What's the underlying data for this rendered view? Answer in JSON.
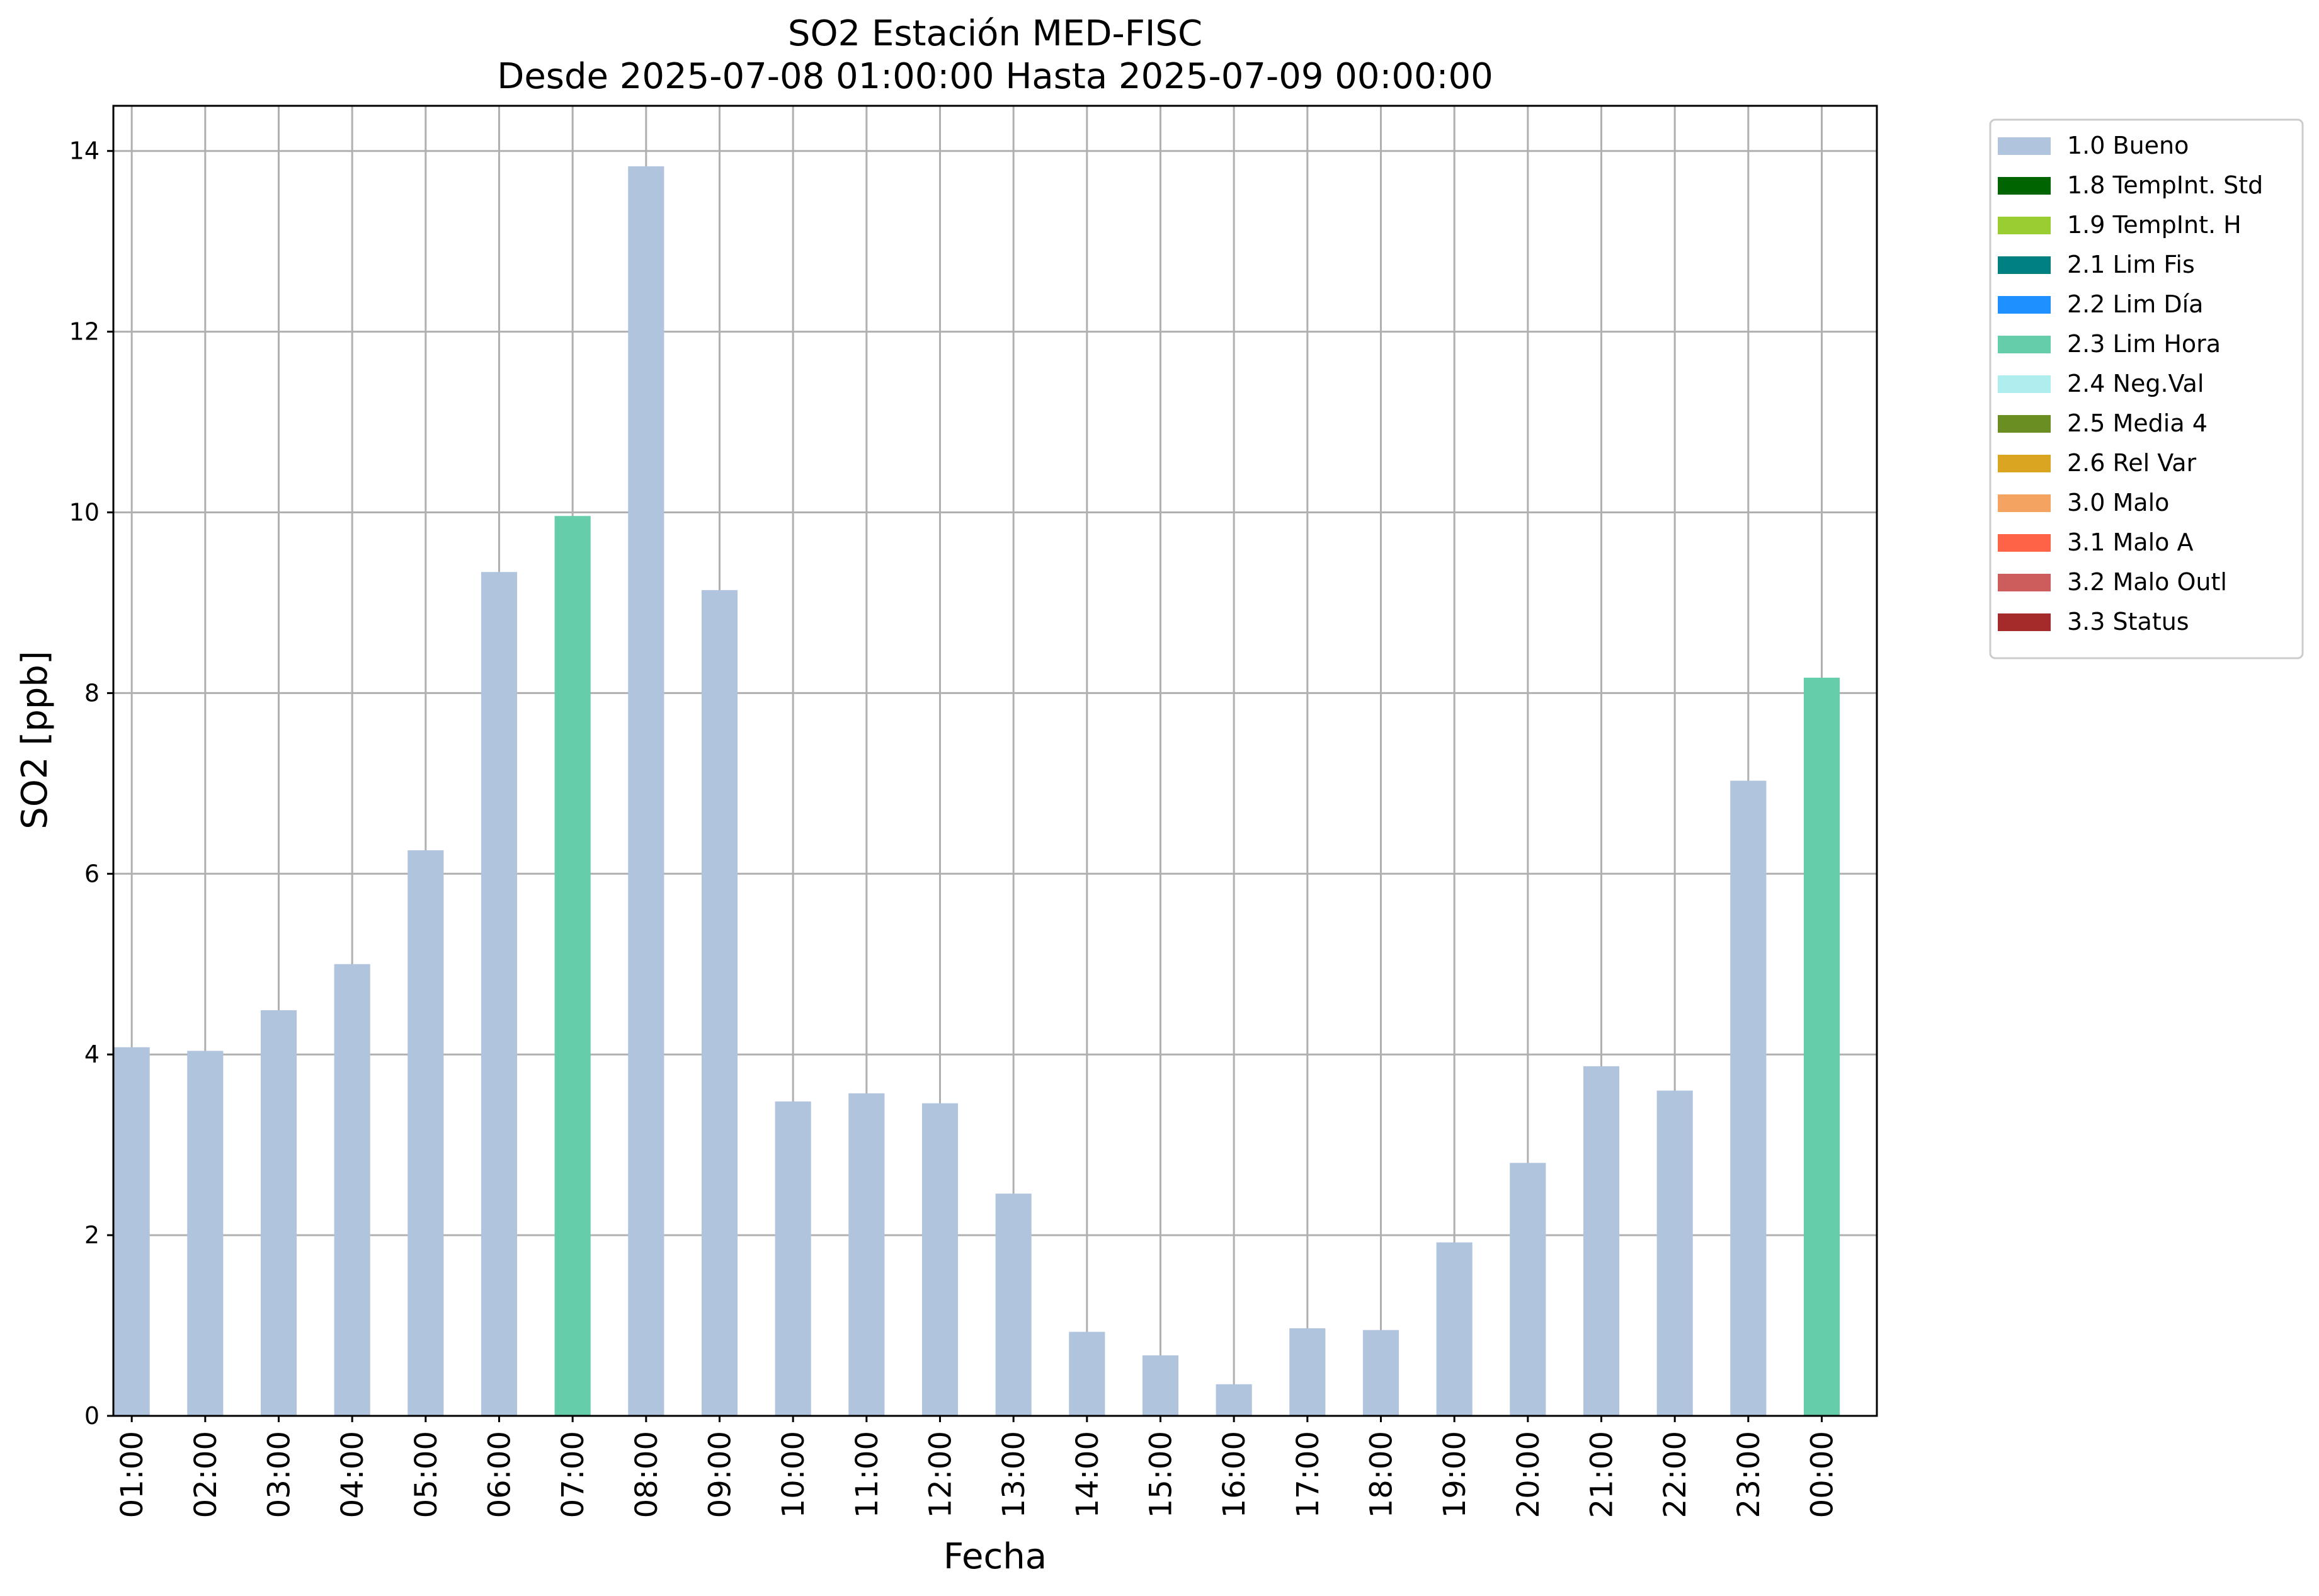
{
  "chart_data": {
    "type": "bar",
    "title": "SO2 Estación MED-FISC",
    "subtitle": "Desde 2025-07-08 01:00:00 Hasta 2025-07-09 00:00:00",
    "xlabel": "Fecha",
    "ylabel": "SO2 [ppb]",
    "ylim": [
      0,
      14.5
    ],
    "yticks": [
      0,
      2,
      4,
      6,
      8,
      10,
      12,
      14
    ],
    "grid": true,
    "legend_position": "outside-top-right",
    "categories": [
      "01:00",
      "02:00",
      "03:00",
      "04:00",
      "05:00",
      "06:00",
      "07:00",
      "08:00",
      "09:00",
      "10:00",
      "11:00",
      "12:00",
      "13:00",
      "14:00",
      "15:00",
      "16:00",
      "17:00",
      "18:00",
      "19:00",
      "20:00",
      "21:00",
      "22:00",
      "23:00",
      "00:00"
    ],
    "values": [
      4.08,
      4.04,
      4.49,
      5.0,
      6.26,
      9.34,
      9.96,
      13.83,
      9.14,
      3.48,
      3.57,
      3.46,
      2.46,
      0.93,
      0.67,
      0.35,
      0.97,
      0.95,
      1.92,
      2.8,
      3.87,
      3.6,
      7.03,
      8.17
    ],
    "flags": [
      "1.0 Bueno",
      "1.0 Bueno",
      "1.0 Bueno",
      "1.0 Bueno",
      "1.0 Bueno",
      "1.0 Bueno",
      "2.3 Lim Hora",
      "1.0 Bueno",
      "1.0 Bueno",
      "1.0 Bueno",
      "1.0 Bueno",
      "1.0 Bueno",
      "1.0 Bueno",
      "1.0 Bueno",
      "1.0 Bueno",
      "1.0 Bueno",
      "1.0 Bueno",
      "1.0 Bueno",
      "1.0 Bueno",
      "1.0 Bueno",
      "1.0 Bueno",
      "1.0 Bueno",
      "1.0 Bueno",
      "2.3 Lim Hora"
    ],
    "legend": [
      {
        "label": "1.0 Bueno",
        "color": "#b0c4de"
      },
      {
        "label": "1.8 TempInt. Std",
        "color": "#006400"
      },
      {
        "label": "1.9 TempInt. H",
        "color": "#9acd32"
      },
      {
        "label": "2.1 Lim Fis",
        "color": "#008080"
      },
      {
        "label": "2.2 Lim Día",
        "color": "#1e90ff"
      },
      {
        "label": "2.3 Lim Hora",
        "color": "#66cdaa"
      },
      {
        "label": "2.4 Neg.Val",
        "color": "#afeeee"
      },
      {
        "label": "2.5 Media 4",
        "color": "#6b8e23"
      },
      {
        "label": "2.6 Rel Var",
        "color": "#daa520"
      },
      {
        "label": "3.0 Malo",
        "color": "#f4a460"
      },
      {
        "label": "3.1 Malo A",
        "color": "#ff6347"
      },
      {
        "label": "3.2 Malo Outl",
        "color": "#cd5c5c"
      },
      {
        "label": "3.3 Status",
        "color": "#a52a2a"
      }
    ]
  }
}
